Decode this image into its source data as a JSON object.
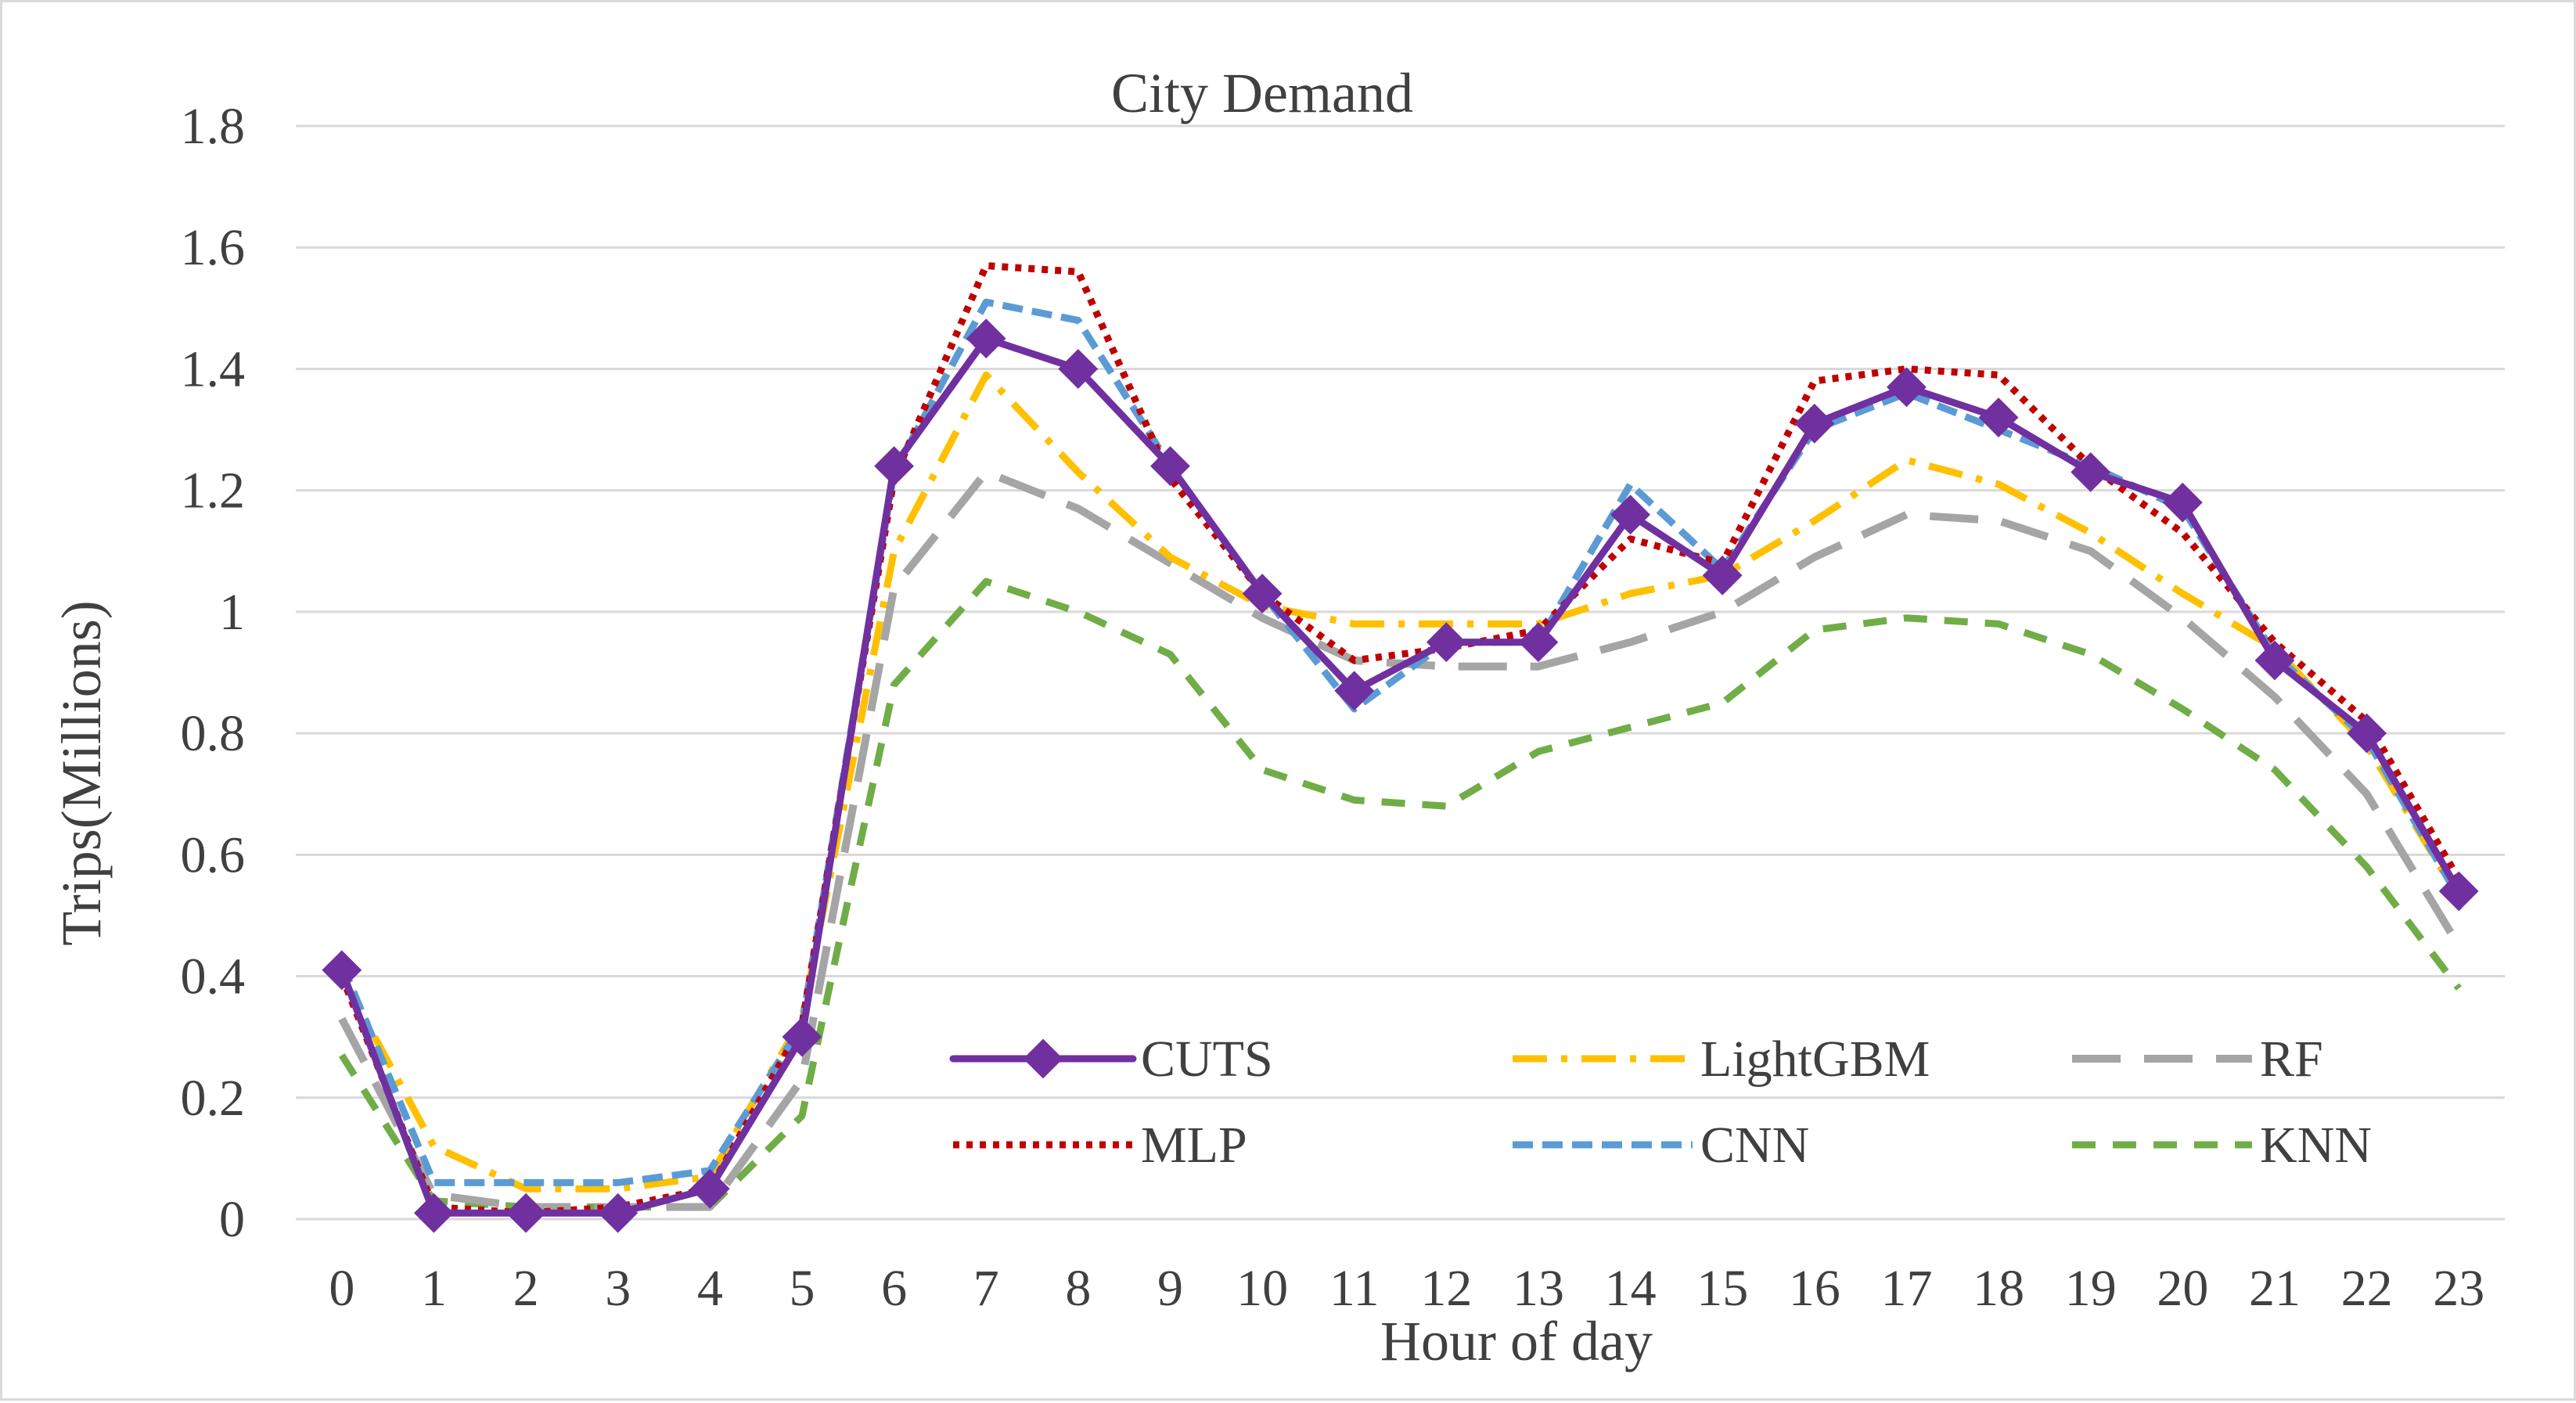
{
  "chart_data": {
    "type": "line",
    "title": "City Demand",
    "xlabel": "Hour of day",
    "ylabel": "Trips(Millions)",
    "ylim": [
      0,
      1.8
    ],
    "yticks": [
      "0",
      "0.2",
      "0.4",
      "0.6",
      "0.8",
      "1",
      "1.2",
      "1.4",
      "1.6",
      "1.8"
    ],
    "categories": [
      "0",
      "1",
      "2",
      "3",
      "4",
      "5",
      "6",
      "7",
      "8",
      "9",
      "10",
      "11",
      "12",
      "13",
      "14",
      "15",
      "16",
      "17",
      "18",
      "19",
      "20",
      "21",
      "22",
      "23"
    ],
    "grid": true,
    "legend_position": "bottom-inside",
    "series": [
      {
        "name": "CUTS",
        "color": "#7030a0",
        "style": "solid-diamond",
        "values": [
          0.41,
          0.01,
          0.01,
          0.01,
          0.05,
          0.3,
          1.24,
          1.45,
          1.4,
          1.24,
          1.03,
          0.87,
          0.95,
          0.95,
          1.16,
          1.06,
          1.31,
          1.37,
          1.32,
          1.23,
          1.18,
          0.92,
          0.8,
          0.54
        ]
      },
      {
        "name": "LightGBM",
        "color": "#ffc000",
        "style": "dash-dot",
        "values": [
          0.4,
          0.12,
          0.05,
          0.05,
          0.07,
          0.33,
          1.1,
          1.39,
          1.23,
          1.09,
          1.01,
          0.98,
          0.98,
          0.98,
          1.03,
          1.06,
          1.15,
          1.25,
          1.21,
          1.13,
          1.03,
          0.94,
          0.78,
          0.53
        ]
      },
      {
        "name": "RF",
        "color": "#a5a5a5",
        "style": "long-dash",
        "values": [
          0.33,
          0.04,
          0.02,
          0.02,
          0.02,
          0.23,
          1.04,
          1.23,
          1.17,
          1.08,
          0.99,
          0.92,
          0.91,
          0.91,
          0.95,
          1.0,
          1.09,
          1.16,
          1.15,
          1.1,
          0.99,
          0.86,
          0.7,
          0.45
        ]
      },
      {
        "name": "MLP",
        "color": "#c00000",
        "style": "dotted",
        "values": [
          0.4,
          0.02,
          0.01,
          0.02,
          0.05,
          0.32,
          1.22,
          1.57,
          1.56,
          1.22,
          1.03,
          0.92,
          0.94,
          0.97,
          1.12,
          1.08,
          1.38,
          1.4,
          1.39,
          1.24,
          1.13,
          0.95,
          0.82,
          0.56
        ]
      },
      {
        "name": "CNN",
        "color": "#5b9bd5",
        "style": "dashed",
        "values": [
          0.42,
          0.06,
          0.06,
          0.06,
          0.08,
          0.32,
          1.23,
          1.51,
          1.48,
          1.24,
          1.03,
          0.84,
          0.95,
          0.95,
          1.21,
          1.07,
          1.3,
          1.36,
          1.3,
          1.24,
          1.17,
          0.93,
          0.79,
          0.53
        ]
      },
      {
        "name": "KNN",
        "color": "#70ad47",
        "style": "short-dash",
        "values": [
          0.27,
          0.03,
          0.02,
          0.02,
          0.02,
          0.17,
          0.88,
          1.05,
          1.0,
          0.93,
          0.74,
          0.69,
          0.68,
          0.77,
          0.81,
          0.85,
          0.97,
          0.99,
          0.98,
          0.93,
          0.84,
          0.74,
          0.58,
          0.38
        ]
      }
    ]
  }
}
